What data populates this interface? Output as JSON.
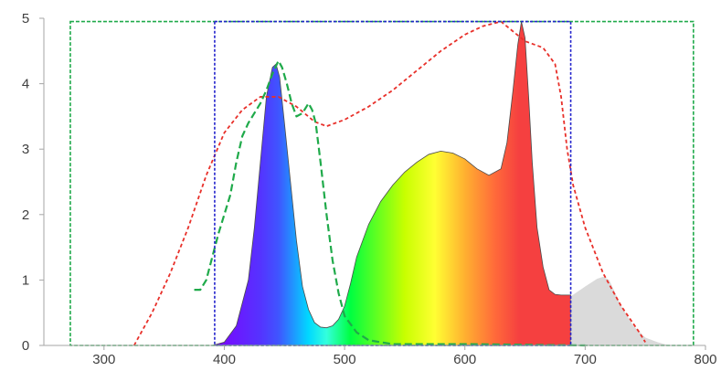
{
  "chart_data": {
    "type": "area",
    "title": "",
    "xlabel": "",
    "ylabel": "",
    "xlim": [
      250,
      800
    ],
    "ylim": [
      0,
      5
    ],
    "x_ticks": [
      "300",
      "400",
      "500",
      "600",
      "700",
      "800"
    ],
    "y_ticks": [
      "0",
      "1",
      "2",
      "3",
      "4",
      "5"
    ],
    "grid": false,
    "legend": "none",
    "series": [
      {
        "kind": "filled-spectrum",
        "points": [
          [
            390,
            0.0
          ],
          [
            400,
            0.05
          ],
          [
            410,
            0.3
          ],
          [
            420,
            1.0
          ],
          [
            425,
            1.8
          ],
          [
            430,
            2.8
          ],
          [
            435,
            3.8
          ],
          [
            440,
            4.25
          ],
          [
            443,
            4.3
          ],
          [
            446,
            4.1
          ],
          [
            450,
            3.4
          ],
          [
            455,
            2.5
          ],
          [
            460,
            1.6
          ],
          [
            465,
            0.9
          ],
          [
            470,
            0.55
          ],
          [
            475,
            0.35
          ],
          [
            480,
            0.28
          ],
          [
            485,
            0.27
          ],
          [
            490,
            0.3
          ],
          [
            495,
            0.4
          ],
          [
            500,
            0.6
          ],
          [
            505,
            0.95
          ],
          [
            510,
            1.35
          ],
          [
            520,
            1.85
          ],
          [
            530,
            2.2
          ],
          [
            540,
            2.45
          ],
          [
            550,
            2.65
          ],
          [
            560,
            2.8
          ],
          [
            570,
            2.92
          ],
          [
            580,
            2.97
          ],
          [
            590,
            2.94
          ],
          [
            600,
            2.85
          ],
          [
            610,
            2.7
          ],
          [
            620,
            2.6
          ],
          [
            630,
            2.7
          ],
          [
            635,
            3.1
          ],
          [
            640,
            3.9
          ],
          [
            644,
            4.6
          ],
          [
            647,
            4.95
          ],
          [
            650,
            4.7
          ],
          [
            653,
            3.8
          ],
          [
            656,
            2.8
          ],
          [
            660,
            1.8
          ],
          [
            665,
            1.2
          ],
          [
            670,
            0.85
          ],
          [
            675,
            0.78
          ],
          [
            680,
            0.77
          ],
          [
            688,
            0.77
          ]
        ],
        "color_stops": [
          [
            390,
            "#7f00ff"
          ],
          [
            430,
            "#5533ff"
          ],
          [
            445,
            "#3f55ff"
          ],
          [
            470,
            "#00d8ff"
          ],
          [
            485,
            "#33ffdd"
          ],
          [
            505,
            "#00ff40"
          ],
          [
            550,
            "#c8ff00"
          ],
          [
            575,
            "#ffff33"
          ],
          [
            600,
            "#ffb030"
          ],
          [
            625,
            "#ff6a3a"
          ],
          [
            645,
            "#f54040"
          ],
          [
            688,
            "#f54040"
          ]
        ]
      },
      {
        "kind": "filled-ir",
        "color": "#dadada",
        "points": [
          [
            688,
            0.75
          ],
          [
            700,
            0.9
          ],
          [
            710,
            1.02
          ],
          [
            715,
            1.05
          ],
          [
            720,
            1.0
          ],
          [
            730,
            0.6
          ],
          [
            740,
            0.3
          ],
          [
            750,
            0.12
          ],
          [
            760,
            0.05
          ],
          [
            770,
            0.0
          ]
        ]
      },
      {
        "kind": "dashed-line",
        "color": "#e8302a",
        "points": [
          [
            325,
            0.0
          ],
          [
            340,
            0.5
          ],
          [
            355,
            1.1
          ],
          [
            370,
            1.8
          ],
          [
            385,
            2.6
          ],
          [
            400,
            3.25
          ],
          [
            415,
            3.6
          ],
          [
            430,
            3.8
          ],
          [
            445,
            3.8
          ],
          [
            460,
            3.65
          ],
          [
            475,
            3.42
          ],
          [
            485,
            3.35
          ],
          [
            500,
            3.45
          ],
          [
            520,
            3.65
          ],
          [
            540,
            3.9
          ],
          [
            560,
            4.2
          ],
          [
            580,
            4.5
          ],
          [
            600,
            4.75
          ],
          [
            615,
            4.88
          ],
          [
            630,
            4.95
          ],
          [
            650,
            4.65
          ],
          [
            665,
            4.55
          ],
          [
            675,
            4.3
          ],
          [
            680,
            3.8
          ],
          [
            685,
            3.0
          ],
          [
            690,
            2.45
          ],
          [
            700,
            1.8
          ],
          [
            715,
            1.1
          ],
          [
            730,
            0.6
          ],
          [
            745,
            0.2
          ],
          [
            750,
            0.05
          ]
        ]
      },
      {
        "kind": "dashed-line",
        "color": "#1faa4a",
        "points": [
          [
            375,
            0.85
          ],
          [
            380,
            0.85
          ],
          [
            385,
            1.0
          ],
          [
            390,
            1.35
          ],
          [
            395,
            1.7
          ],
          [
            400,
            2.0
          ],
          [
            405,
            2.3
          ],
          [
            410,
            2.8
          ],
          [
            415,
            3.2
          ],
          [
            420,
            3.4
          ],
          [
            425,
            3.55
          ],
          [
            430,
            3.7
          ],
          [
            435,
            3.9
          ],
          [
            440,
            4.15
          ],
          [
            445,
            4.35
          ],
          [
            448,
            4.25
          ],
          [
            452,
            4.0
          ],
          [
            456,
            3.7
          ],
          [
            460,
            3.5
          ],
          [
            465,
            3.55
          ],
          [
            470,
            3.7
          ],
          [
            473,
            3.6
          ],
          [
            476,
            3.4
          ],
          [
            480,
            2.8
          ],
          [
            485,
            2.0
          ],
          [
            490,
            1.3
          ],
          [
            495,
            0.8
          ],
          [
            500,
            0.45
          ],
          [
            510,
            0.2
          ],
          [
            520,
            0.08
          ],
          [
            540,
            0.02
          ],
          [
            600,
            0.02
          ],
          [
            650,
            0.01
          ],
          [
            700,
            0.0
          ]
        ]
      },
      {
        "kind": "dashed-rect",
        "color": "#1faa4a",
        "x": [
          272,
          790
        ],
        "y": [
          0,
          4.95
        ]
      },
      {
        "kind": "dashed-rect",
        "color": "#2222cc",
        "x": [
          392,
          688
        ],
        "y": [
          0,
          4.95
        ]
      }
    ]
  }
}
